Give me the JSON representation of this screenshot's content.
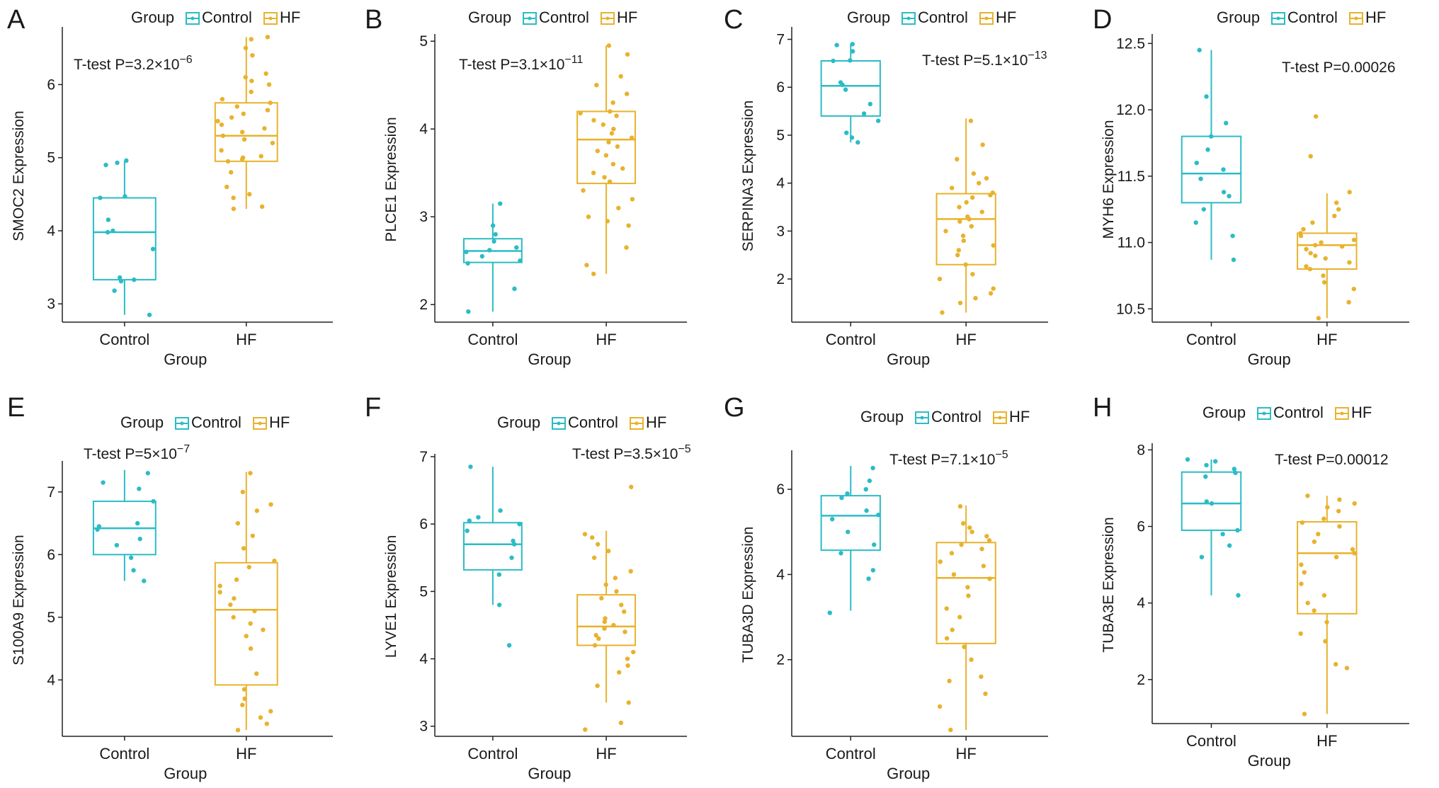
{
  "figure": {
    "legend_title": "Group",
    "xlabel": "Group",
    "groups": [
      "Control",
      "HF"
    ],
    "colors": {
      "Control": "#2bbcc6",
      "HF": "#e8b22c"
    }
  },
  "chart_data": [
    {
      "type": "box",
      "panel": "A",
      "ylabel": "SMOC2 Expression",
      "title": "",
      "stat_prefix": "T-test P=3.2×10",
      "stat_exp": "−6",
      "ylim": [
        2.75,
        6.75
      ],
      "yticks": [
        3,
        4,
        5,
        6
      ],
      "boxes": {
        "Control": {
          "min": 2.85,
          "q1": 3.33,
          "median": 3.98,
          "q3": 4.45,
          "max": 4.95
        },
        "HF": {
          "min": 4.3,
          "q1": 4.95,
          "median": 5.3,
          "q3": 5.75,
          "max": 6.65
        }
      },
      "points": {
        "Control": [
          2.85,
          3.18,
          3.31,
          3.33,
          3.36,
          3.75,
          3.98,
          4.0,
          4.15,
          4.45,
          4.47,
          4.9,
          4.93,
          4.96
        ],
        "HF": [
          4.3,
          4.33,
          4.45,
          4.5,
          4.6,
          4.8,
          4.95,
          4.98,
          5.0,
          5.02,
          5.1,
          5.2,
          5.25,
          5.3,
          5.35,
          5.4,
          5.45,
          5.5,
          5.55,
          5.6,
          5.65,
          5.7,
          5.75,
          5.8,
          5.9,
          6.0,
          6.05,
          6.1,
          6.15,
          6.4,
          6.5,
          6.62,
          6.65
        ]
      }
    },
    {
      "type": "box",
      "panel": "B",
      "ylabel": "PLCE1 Expression",
      "title": "",
      "stat_prefix": "T-test P=3.1×10",
      "stat_exp": "−11",
      "ylim": [
        1.8,
        5.05
      ],
      "yticks": [
        2,
        3,
        4,
        5
      ],
      "boxes": {
        "Control": {
          "min": 1.92,
          "q1": 2.48,
          "median": 2.61,
          "q3": 2.75,
          "max": 3.15
        },
        "HF": {
          "min": 2.35,
          "q1": 3.38,
          "median": 3.88,
          "q3": 4.2,
          "max": 4.95
        }
      },
      "points": {
        "Control": [
          1.92,
          2.18,
          2.47,
          2.5,
          2.55,
          2.6,
          2.62,
          2.65,
          2.72,
          2.8,
          2.9,
          3.15
        ],
        "HF": [
          2.35,
          2.45,
          2.65,
          2.9,
          2.95,
          3.0,
          3.1,
          3.2,
          3.3,
          3.4,
          3.45,
          3.5,
          3.55,
          3.6,
          3.7,
          3.75,
          3.8,
          3.85,
          3.9,
          3.95,
          4.0,
          4.05,
          4.1,
          4.15,
          4.18,
          4.2,
          4.3,
          4.4,
          4.5,
          4.6,
          4.85,
          4.95
        ]
      }
    },
    {
      "type": "box",
      "panel": "C",
      "ylabel": "SERPINA3 Expression",
      "title": "",
      "stat_prefix": "T-test P=5.1×10",
      "stat_exp": "−13",
      "ylim": [
        1.1,
        7.2
      ],
      "yticks": [
        2,
        3,
        4,
        5,
        6,
        7
      ],
      "boxes": {
        "Control": {
          "min": 4.85,
          "q1": 5.4,
          "median": 6.03,
          "q3": 6.55,
          "max": 6.9
        },
        "HF": {
          "min": 1.3,
          "q1": 2.3,
          "median": 3.25,
          "q3": 3.78,
          "max": 5.35
        }
      },
      "points": {
        "Control": [
          4.85,
          4.95,
          5.05,
          5.3,
          5.45,
          5.65,
          5.95,
          6.05,
          6.1,
          6.55,
          6.56,
          6.75,
          6.88,
          6.9
        ],
        "HF": [
          1.3,
          1.5,
          1.6,
          1.7,
          1.8,
          2.0,
          2.1,
          2.3,
          2.5,
          2.6,
          2.7,
          2.8,
          2.9,
          3.0,
          3.1,
          3.2,
          3.25,
          3.3,
          3.4,
          3.5,
          3.6,
          3.7,
          3.75,
          3.8,
          3.9,
          4.0,
          4.1,
          4.2,
          4.5,
          4.8,
          5.3
        ]
      }
    },
    {
      "type": "box",
      "panel": "D",
      "ylabel": "MYH6 Expression",
      "title": "",
      "stat_prefix": "T-test P=0.00026",
      "stat_exp": "",
      "ylim": [
        10.4,
        12.55
      ],
      "yticks": [
        10.5,
        11.0,
        11.5,
        12.0,
        12.5
      ],
      "boxes": {
        "Control": {
          "min": 10.87,
          "q1": 11.3,
          "median": 11.52,
          "q3": 11.8,
          "max": 12.45
        },
        "HF": {
          "min": 10.43,
          "q1": 10.8,
          "median": 10.98,
          "q3": 11.07,
          "max": 11.37
        }
      },
      "points": {
        "Control": [
          10.87,
          11.05,
          11.15,
          11.25,
          11.35,
          11.38,
          11.48,
          11.55,
          11.6,
          11.7,
          11.8,
          11.9,
          12.1,
          12.45
        ],
        "HF": [
          10.43,
          10.55,
          10.65,
          10.7,
          10.75,
          10.8,
          10.82,
          10.85,
          10.88,
          10.9,
          10.92,
          10.95,
          10.97,
          10.98,
          11.0,
          11.02,
          11.05,
          11.07,
          11.1,
          11.15,
          11.2,
          11.25,
          11.3,
          11.38,
          11.65,
          11.95
        ]
      }
    },
    {
      "type": "box",
      "panel": "E",
      "ylabel": "S100A9 Expression",
      "title": "",
      "stat_prefix": "T-test P=5×10",
      "stat_exp": "−7",
      "ylim": [
        3.1,
        7.45
      ],
      "yticks": [
        4,
        5,
        6,
        7
      ],
      "boxes": {
        "Control": {
          "min": 5.58,
          "q1": 6.0,
          "median": 6.42,
          "q3": 6.85,
          "max": 7.35
        },
        "HF": {
          "min": 3.2,
          "q1": 3.92,
          "median": 5.12,
          "q3": 5.87,
          "max": 7.32
        }
      },
      "points": {
        "Control": [
          5.58,
          5.75,
          5.95,
          6.15,
          6.25,
          6.4,
          6.45,
          6.5,
          6.85,
          7.05,
          7.15,
          7.3
        ],
        "HF": [
          3.2,
          3.3,
          3.4,
          3.5,
          3.6,
          3.7,
          3.85,
          4.1,
          4.5,
          4.7,
          4.8,
          4.9,
          5.0,
          5.1,
          5.2,
          5.3,
          5.4,
          5.5,
          5.6,
          5.8,
          5.9,
          6.1,
          6.3,
          6.5,
          6.7,
          6.8,
          7.0,
          7.3
        ]
      }
    },
    {
      "type": "box",
      "panel": "F",
      "ylabel": "LYVE1 Expression",
      "title": "",
      "stat_prefix": "T-test P=3.5×10",
      "stat_exp": "−5",
      "ylim": [
        2.85,
        7.0
      ],
      "yticks": [
        3,
        4,
        5,
        6,
        7
      ],
      "boxes": {
        "Control": {
          "min": 4.8,
          "q1": 5.32,
          "median": 5.7,
          "q3": 6.02,
          "max": 6.85
        },
        "HF": {
          "min": 3.35,
          "q1": 4.2,
          "median": 4.48,
          "q3": 4.95,
          "max": 5.9
        }
      },
      "points": {
        "Control": [
          4.2,
          4.8,
          5.25,
          5.5,
          5.7,
          5.75,
          5.9,
          6.0,
          6.05,
          6.1,
          6.2,
          6.85
        ],
        "HF": [
          2.95,
          3.05,
          3.35,
          3.6,
          3.8,
          3.9,
          4.0,
          4.1,
          4.2,
          4.3,
          4.35,
          4.4,
          4.45,
          4.5,
          4.55,
          4.6,
          4.7,
          4.8,
          4.9,
          5.0,
          5.1,
          5.2,
          5.3,
          5.5,
          5.6,
          5.7,
          5.8,
          5.85,
          6.55
        ]
      }
    },
    {
      "type": "box",
      "panel": "G",
      "ylabel": "TUBA3D Expression",
      "title": "",
      "stat_prefix": "T-test P=7.1×10",
      "stat_exp": "−5",
      "ylim": [
        0.2,
        6.85
      ],
      "yticks": [
        2,
        4,
        6
      ],
      "boxes": {
        "Control": {
          "min": 3.15,
          "q1": 4.57,
          "median": 5.38,
          "q3": 5.85,
          "max": 6.55
        },
        "HF": {
          "min": 0.35,
          "q1": 2.38,
          "median": 3.92,
          "q3": 4.75,
          "max": 5.62
        }
      },
      "points": {
        "Control": [
          3.1,
          3.9,
          4.1,
          4.5,
          4.7,
          5.0,
          5.3,
          5.4,
          5.5,
          5.8,
          5.9,
          6.0,
          6.2,
          6.5
        ],
        "HF": [
          0.35,
          0.9,
          1.2,
          1.5,
          1.6,
          2.0,
          2.3,
          2.5,
          2.7,
          3.0,
          3.2,
          3.5,
          3.7,
          3.9,
          4.0,
          4.2,
          4.3,
          4.5,
          4.6,
          4.7,
          4.8,
          4.9,
          5.0,
          5.1,
          5.2,
          5.6
        ]
      }
    },
    {
      "type": "box",
      "panel": "H",
      "ylabel": "TUBA3E Expression",
      "title": "",
      "stat_prefix": "T-test P=0.00012",
      "stat_exp": "",
      "ylim": [
        0.85,
        8.1
      ],
      "yticks": [
        2,
        4,
        6,
        8
      ],
      "boxes": {
        "Control": {
          "min": 4.2,
          "q1": 5.9,
          "median": 6.6,
          "q3": 7.42,
          "max": 7.75
        },
        "HF": {
          "min": 1.1,
          "q1": 3.72,
          "median": 5.3,
          "q3": 6.12,
          "max": 6.8
        }
      },
      "points": {
        "Control": [
          4.2,
          5.2,
          5.5,
          5.8,
          5.9,
          6.6,
          6.65,
          7.3,
          7.4,
          7.5,
          7.6,
          7.7,
          7.75
        ],
        "HF": [
          1.1,
          2.3,
          2.4,
          3.0,
          3.2,
          3.5,
          3.8,
          4.0,
          4.2,
          4.5,
          4.8,
          5.0,
          5.2,
          5.3,
          5.4,
          5.6,
          5.8,
          6.0,
          6.1,
          6.2,
          6.4,
          6.5,
          6.6,
          6.7,
          6.8
        ]
      }
    }
  ]
}
